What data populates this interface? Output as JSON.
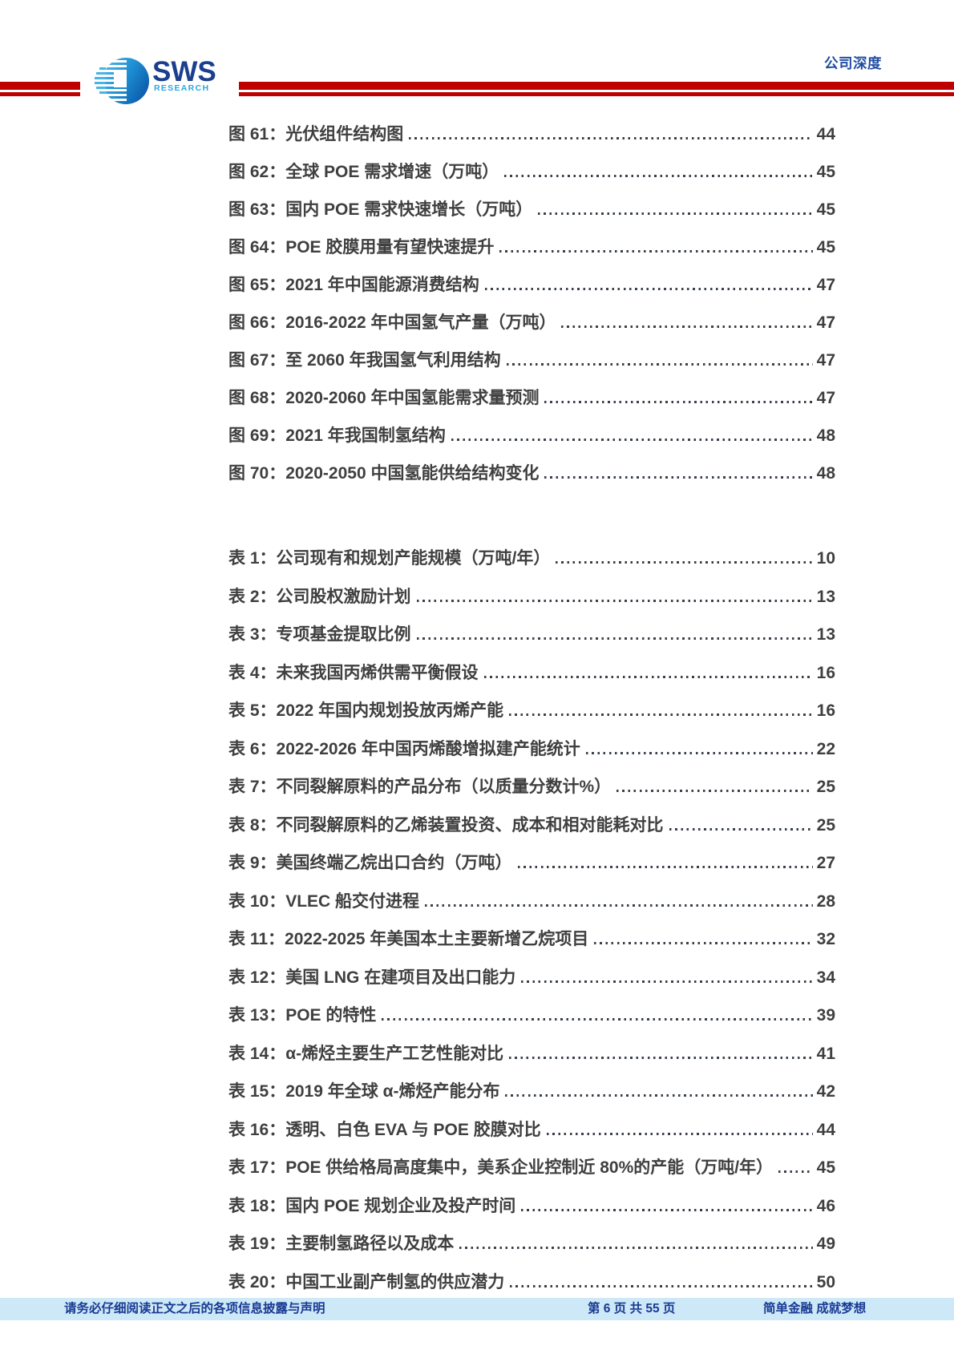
{
  "header": {
    "doc_type": "公司深度",
    "logo_sws": "SWS",
    "logo_research": "RESEARCH"
  },
  "toc": {
    "figures": [
      {
        "label": "图 61：光伏组件结构图",
        "page": "44"
      },
      {
        "label": "图 62：全球 POE 需求增速（万吨）",
        "page": "45"
      },
      {
        "label": "图 63：国内 POE 需求快速增长（万吨）",
        "page": "45"
      },
      {
        "label": "图 64：POE 胶膜用量有望快速提升",
        "page": "45"
      },
      {
        "label": "图 65：2021 年中国能源消费结构",
        "page": "47"
      },
      {
        "label": "图 66：2016-2022 年中国氢气产量（万吨）",
        "page": "47"
      },
      {
        "label": "图 67：至 2060 年我国氢气利用结构",
        "page": "47"
      },
      {
        "label": "图 68：2020-2060 年中国氢能需求量预测",
        "page": "47"
      },
      {
        "label": "图 69：2021 年我国制氢结构",
        "page": "48"
      },
      {
        "label": "图 70：2020-2050 中国氢能供给结构变化",
        "page": "48"
      }
    ],
    "tables": [
      {
        "label": "表 1：公司现有和规划产能规模（万吨/年）",
        "page": "10"
      },
      {
        "label": "表 2：公司股权激励计划",
        "page": "13"
      },
      {
        "label": "表 3：专项基金提取比例",
        "page": "13"
      },
      {
        "label": "表 4：未来我国丙烯供需平衡假设",
        "page": "16"
      },
      {
        "label": "表 5：2022 年国内规划投放丙烯产能",
        "page": "16"
      },
      {
        "label": "表 6：2022-2026 年中国丙烯酸增拟建产能统计",
        "page": "22"
      },
      {
        "label": "表 7：不同裂解原料的产品分布（以质量分数计%）",
        "page": "25"
      },
      {
        "label": "表 8：不同裂解原料的乙烯装置投资、成本和相对能耗对比",
        "page": "25"
      },
      {
        "label": "表 9：美国终端乙烷出口合约（万吨）",
        "page": "27"
      },
      {
        "label": "表 10：VLEC 船交付进程",
        "page": "28"
      },
      {
        "label": "表 11：2022-2025 年美国本土主要新增乙烷项目",
        "page": "32"
      },
      {
        "label": "表 12：美国 LNG 在建项目及出口能力",
        "page": "34"
      },
      {
        "label": "表 13：POE 的特性",
        "page": "39"
      },
      {
        "label": "表 14：α-烯烃主要生产工艺性能对比",
        "page": "41"
      },
      {
        "label": "表 15：2019 年全球 α-烯烃产能分布",
        "page": "42"
      },
      {
        "label": "表 16：透明、白色 EVA 与 POE 胶膜对比",
        "page": "44"
      },
      {
        "label": "表 17：POE 供给格局高度集中，美系企业控制近 80%的产能（万吨/年）",
        "page": "45"
      },
      {
        "label": "表 18：国内 POE 规划企业及投产时间",
        "page": "46"
      },
      {
        "label": "表 19：主要制氢路径以及成本",
        "page": "49"
      },
      {
        "label": "表 20：中国工业副产制氢的供应潜力",
        "page": "50"
      }
    ]
  },
  "footer": {
    "disclaimer": "请务必仔细阅读正文之后的各项信息披露与声明",
    "page_indicator": "第 6 页 共 55 页",
    "slogan": "简单金融 成就梦想"
  },
  "colors": {
    "accent_red": "#bf0000",
    "header_blue": "#1f4ca3",
    "toc_text": "#3f3f3f",
    "footer_bg": "#cde9f7",
    "footer_text": "#1a3a94",
    "logo_navy": "#1b3e8f",
    "logo_cyan": "#29a9e0"
  }
}
